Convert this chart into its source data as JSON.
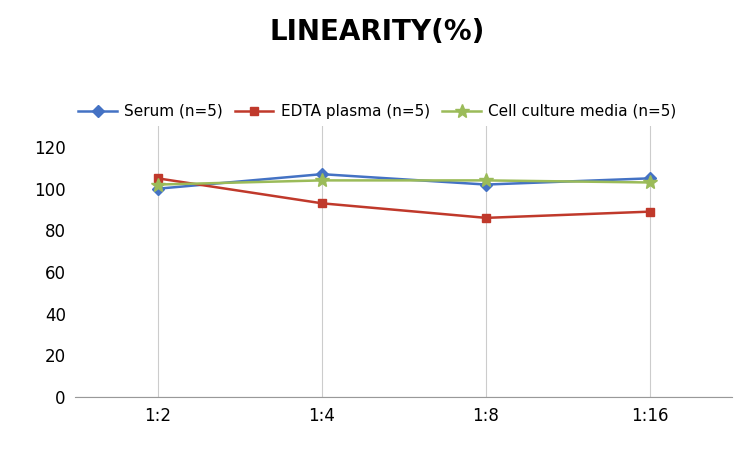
{
  "title": "LINEARITY(%)",
  "x_labels": [
    "1:2",
    "1:4",
    "1:8",
    "1:16"
  ],
  "x_positions": [
    0,
    1,
    2,
    3
  ],
  "series": [
    {
      "label": "Serum (n=5)",
      "values": [
        100,
        107,
        102,
        105
      ],
      "color": "#4472C4",
      "marker": "D",
      "markersize": 6,
      "linewidth": 1.8
    },
    {
      "label": "EDTA plasma (n=5)",
      "values": [
        105,
        93,
        86,
        89
      ],
      "color": "#C0392B",
      "marker": "s",
      "markersize": 6,
      "linewidth": 1.8
    },
    {
      "label": "Cell culture media (n=5)",
      "values": [
        102,
        104,
        104,
        103
      ],
      "color": "#9BBB59",
      "marker": "*",
      "markersize": 10,
      "linewidth": 1.8
    }
  ],
  "ylim": [
    0,
    130
  ],
  "yticks": [
    0,
    20,
    40,
    60,
    80,
    100,
    120
  ],
  "background_color": "#ffffff",
  "title_fontsize": 20,
  "legend_fontsize": 11,
  "tick_fontsize": 12,
  "grid_vertical": true
}
